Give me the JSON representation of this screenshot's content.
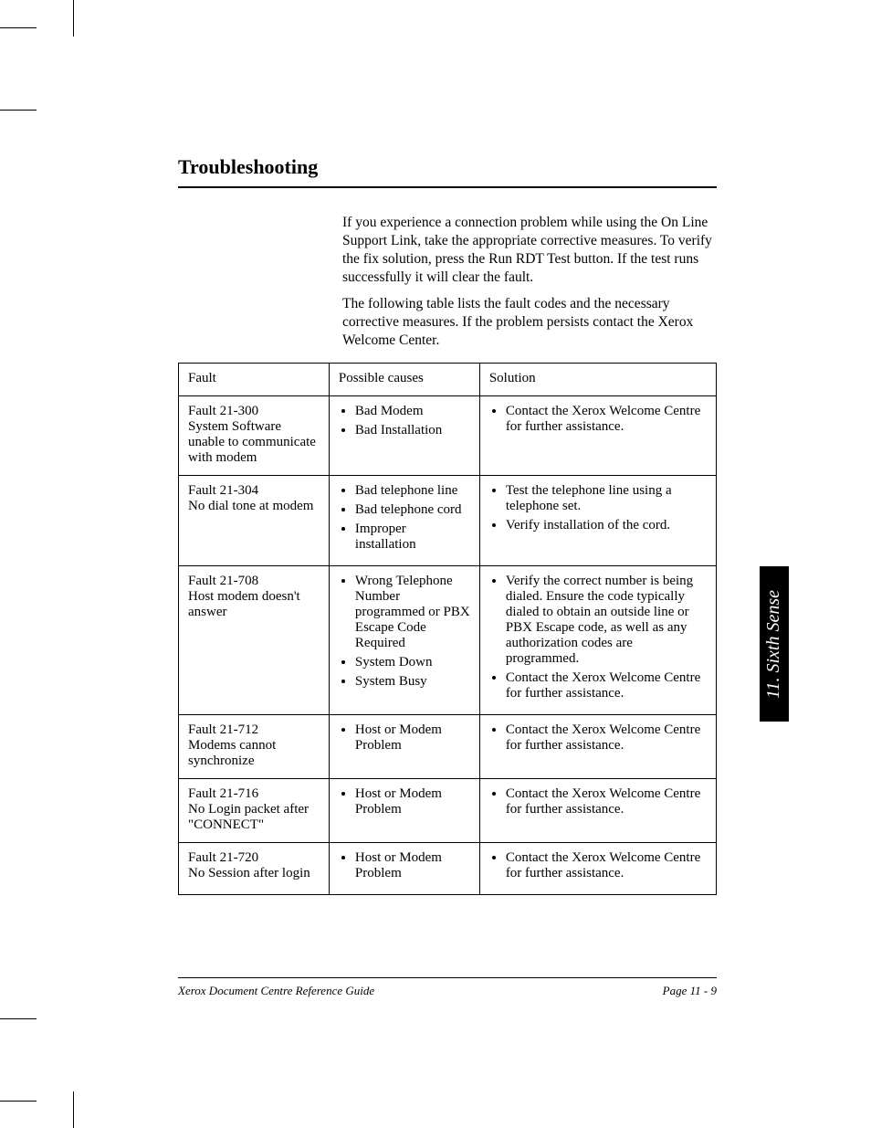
{
  "heading": "Troubleshooting",
  "intro": {
    "p1": "If you experience a connection problem while using the On Line Support Link, take the appropriate corrective measures. To verify the fix solution, press the Run RDT Test button. If the test runs successfully it will clear the fault.",
    "p2": "The following table lists the fault codes and the necessary corrective measures. If the problem persists contact the Xerox Welcome Center."
  },
  "table": {
    "headers": {
      "fault": "Fault",
      "causes": "Possible causes",
      "solution": "Solution"
    },
    "rows": [
      {
        "fault_code": "Fault 21-300",
        "fault_desc": "System Software unable to communicate with modem",
        "causes": [
          "Bad Modem",
          "Bad Installation"
        ],
        "solutions": [
          "Contact the Xerox Welcome Centre for further assistance."
        ]
      },
      {
        "fault_code": "Fault 21-304",
        "fault_desc": "No dial tone at modem",
        "causes": [
          "Bad telephone line",
          "Bad telephone cord",
          "Improper installation"
        ],
        "solutions": [
          "Test the telephone line using a telephone set.",
          "Verify installation of the cord."
        ]
      },
      {
        "fault_code": "Fault 21-708",
        "fault_desc": "Host modem doesn't answer",
        "causes": [
          "Wrong Telephone Number programmed or PBX Escape Code Required",
          "System Down",
          "System Busy"
        ],
        "solutions": [
          "Verify the correct number is being dialed. Ensure the code typically dialed to obtain an outside line or PBX Escape code, as well as any authorization codes are programmed.",
          "Contact the Xerox Welcome Centre for further assistance."
        ]
      },
      {
        "fault_code": "Fault 21-712",
        "fault_desc": "Modems cannot synchronize",
        "causes": [
          "Host or Modem Problem"
        ],
        "solutions": [
          "Contact the Xerox Welcome Centre for further assistance."
        ]
      },
      {
        "fault_code": "Fault 21-716",
        "fault_desc": "No Login packet after \"CONNECT\"",
        "causes": [
          "Host or Modem Problem"
        ],
        "solutions": [
          "Contact the Xerox Welcome Centre for further assistance."
        ]
      },
      {
        "fault_code": "Fault 21-720",
        "fault_desc": "No Session after login",
        "causes": [
          "Host or Modem Problem"
        ],
        "solutions": [
          "Contact the Xerox Welcome Centre for further assistance."
        ]
      }
    ]
  },
  "side_tab": "11. Sixth Sense",
  "footer": {
    "left": "Xerox Document Centre Reference Guide",
    "right": "Page 11 - 9"
  },
  "colors": {
    "text": "#000000",
    "background": "#ffffff",
    "tab_bg": "#000000",
    "tab_text": "#ffffff",
    "rule": "#000000"
  },
  "typography": {
    "body_font": "Times New Roman",
    "body_size_pt": 12,
    "heading_size_pt": 17,
    "footer_size_pt": 10,
    "side_tab_size_pt": 15
  }
}
